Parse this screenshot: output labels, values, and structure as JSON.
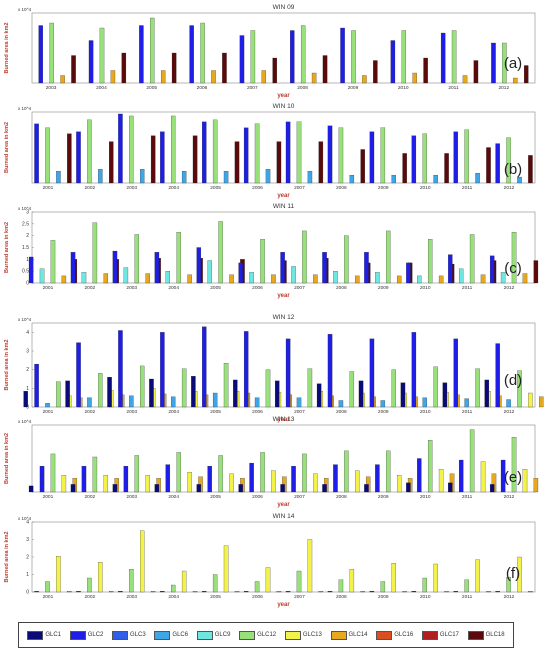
{
  "figure": {
    "ylabel": "Burned area in km2",
    "xlabel": "year",
    "panel_labels": [
      "(a)",
      "(b)",
      "(c)",
      "(d)",
      "(e)",
      "(f)"
    ]
  },
  "legend": {
    "entries": [
      {
        "name": "GLC1",
        "color": "#0a0a78"
      },
      {
        "name": "GLC2",
        "color": "#1e1ee6"
      },
      {
        "name": "GLC3",
        "color": "#2f5fe8"
      },
      {
        "name": "GLC6",
        "color": "#3ea6e6"
      },
      {
        "name": "GLC9",
        "color": "#6fe6e0"
      },
      {
        "name": "GLC12",
        "color": "#98e07a"
      },
      {
        "name": "GLC13",
        "color": "#f2f24a"
      },
      {
        "name": "GLC14",
        "color": "#e6a81e"
      },
      {
        "name": "GLC16",
        "color": "#d8501e"
      },
      {
        "name": "GLC17",
        "color": "#b01e1e"
      },
      {
        "name": "GLC18",
        "color": "#5a0a0a"
      }
    ]
  },
  "chart_data": [
    {
      "type": "bar",
      "title": "WIN 09",
      "exponent": "x 10^4",
      "ylim": [
        0,
        1.4
      ],
      "yticks": [],
      "categories": [
        "2003",
        "2004",
        "2005",
        "2006",
        "2007",
        "2008",
        "2009",
        "2010",
        "2011",
        "2012"
      ],
      "series": [
        {
          "name": "GLC2",
          "values": [
            1.15,
            0.85,
            1.15,
            1.15,
            0.95,
            1.05,
            1.1,
            0.85,
            1.0,
            0.8
          ]
        },
        {
          "name": "GLC12",
          "values": [
            1.2,
            1.1,
            1.3,
            1.2,
            1.05,
            1.15,
            1.05,
            1.05,
            1.05,
            0.8
          ]
        },
        {
          "name": "GLC14",
          "values": [
            0.15,
            0.25,
            0.25,
            0.25,
            0.25,
            0.2,
            0.15,
            0.2,
            0.15,
            0.1
          ]
        },
        {
          "name": "GLC18",
          "values": [
            0.55,
            0.6,
            0.6,
            0.6,
            0.5,
            0.55,
            0.45,
            0.5,
            0.45,
            0.35
          ]
        }
      ]
    },
    {
      "type": "bar",
      "title": "WIN 10",
      "exponent": "x 10^4",
      "ylim": [
        0,
        1.8
      ],
      "yticks": [],
      "categories": [
        "2001",
        "2002",
        "2003",
        "2004",
        "2005",
        "2006",
        "2007",
        "2008",
        "2009",
        "2010",
        "2011",
        "2012"
      ],
      "series": [
        {
          "name": "GLC2",
          "values": [
            1.5,
            1.3,
            1.75,
            1.3,
            1.55,
            1.4,
            1.55,
            1.45,
            1.3,
            1.2,
            1.3,
            1.0
          ]
        },
        {
          "name": "GLC12",
          "values": [
            1.4,
            1.6,
            1.7,
            1.7,
            1.6,
            1.5,
            1.55,
            1.4,
            1.4,
            1.25,
            1.35,
            1.15
          ]
        },
        {
          "name": "GLC6",
          "values": [
            0.3,
            0.35,
            0.35,
            0.3,
            0.3,
            0.35,
            0.3,
            0.2,
            0.2,
            0.2,
            0.25,
            0.15
          ]
        },
        {
          "name": "GLC18",
          "values": [
            1.25,
            1.05,
            1.2,
            1.2,
            1.05,
            1.05,
            1.05,
            0.85,
            0.75,
            0.75,
            0.9,
            0.7
          ]
        }
      ]
    },
    {
      "type": "bar",
      "title": "WIN 11",
      "exponent": "x 10^4",
      "ylim": [
        0,
        3
      ],
      "yticks": [
        "0",
        "0.5",
        "1",
        "1.5",
        "2",
        "2.5",
        "3"
      ],
      "categories": [
        "2001",
        "2002",
        "2003",
        "2004",
        "2005",
        "2006",
        "2007",
        "2008",
        "2009",
        "2010",
        "2011",
        "2012"
      ],
      "series": [
        {
          "name": "GLC2",
          "values": [
            1.1,
            1.3,
            1.35,
            1.3,
            1.5,
            0.85,
            1.3,
            1.3,
            1.3,
            0.85,
            1.2,
            1.15
          ]
        },
        {
          "name": "GLC9",
          "values": [
            0.6,
            0.45,
            0.65,
            0.5,
            0.95,
            0.45,
            0.7,
            0.5,
            0.45,
            0.3,
            0.6,
            0.45
          ]
        },
        {
          "name": "GLC12",
          "values": [
            1.8,
            2.55,
            2.05,
            2.15,
            2.6,
            1.85,
            2.2,
            2.0,
            2.2,
            1.85,
            2.05,
            2.15
          ]
        },
        {
          "name": "GLC14",
          "values": [
            0.3,
            0.4,
            0.4,
            0.35,
            0.35,
            0.35,
            0.35,
            0.3,
            0.3,
            0.3,
            0.35,
            0.4
          ]
        },
        {
          "name": "GLC18",
          "values": [
            1.0,
            1.0,
            1.05,
            1.05,
            1.0,
            0.95,
            1.05,
            0.85,
            0.85,
            0.8,
            0.95,
            0.95
          ]
        }
      ]
    },
    {
      "type": "bar",
      "title": "WIN 12",
      "exponent": "x 10^4",
      "ylim": [
        0,
        4.5
      ],
      "yticks": [
        "0",
        "1",
        "2",
        "3",
        "4"
      ],
      "categories": [
        "2001",
        "2002",
        "2003",
        "2004",
        "2005",
        "2006",
        "2007",
        "2008",
        "2009",
        "2010",
        "2011",
        "2012"
      ],
      "series": [
        {
          "name": "GLC1",
          "values": [
            0.85,
            1.4,
            1.6,
            1.5,
            1.65,
            1.45,
            1.4,
            1.25,
            1.4,
            1.3,
            1.3,
            1.45
          ]
        },
        {
          "name": "GLC2",
          "values": [
            2.3,
            3.45,
            4.1,
            4.0,
            4.3,
            4.05,
            3.65,
            3.9,
            3.65,
            4.0,
            3.65,
            3.4
          ]
        },
        {
          "name": "GLC6",
          "values": [
            0.2,
            0.5,
            0.6,
            0.55,
            0.75,
            0.5,
            0.5,
            0.35,
            0.35,
            0.5,
            0.45,
            0.4
          ]
        },
        {
          "name": "GLC12",
          "values": [
            1.35,
            1.8,
            2.2,
            2.05,
            2.35,
            2.0,
            2.05,
            1.9,
            2.0,
            2.15,
            2.05,
            1.95
          ]
        },
        {
          "name": "GLC13",
          "values": [
            0.6,
            0.9,
            1.0,
            0.85,
            0.85,
            0.8,
            0.85,
            0.75,
            0.75,
            0.8,
            0.85,
            0.75
          ]
        },
        {
          "name": "GLC14",
          "values": [
            0.5,
            0.65,
            0.7,
            0.65,
            0.75,
            0.65,
            0.6,
            0.55,
            0.55,
            0.65,
            0.6,
            0.55
          ]
        }
      ]
    },
    {
      "type": "bar",
      "title": "WIN 13",
      "exponent": "x 10^4",
      "ylim": [
        0,
        2.2
      ],
      "yticks": [],
      "categories": [
        "2001",
        "2002",
        "2003",
        "2004",
        "2005",
        "2006",
        "2007",
        "2008",
        "2009",
        "2010",
        "2011",
        "2012"
      ],
      "series": [
        {
          "name": "GLC1",
          "values": [
            0.2,
            0.25,
            0.25,
            0.25,
            0.25,
            0.25,
            0.25,
            0.25,
            0.25,
            0.3,
            0.3,
            0.25
          ]
        },
        {
          "name": "GLC2",
          "values": [
            0.85,
            0.85,
            0.85,
            0.9,
            0.85,
            0.95,
            0.85,
            0.9,
            0.9,
            1.1,
            1.05,
            1.05
          ]
        },
        {
          "name": "GLC12",
          "values": [
            1.25,
            1.15,
            1.2,
            1.3,
            1.2,
            1.3,
            1.25,
            1.35,
            1.35,
            1.7,
            2.05,
            1.8
          ]
        },
        {
          "name": "GLC13",
          "values": [
            0.55,
            0.55,
            0.55,
            0.65,
            0.6,
            0.7,
            0.6,
            0.7,
            0.55,
            0.75,
            1.0,
            0.75
          ]
        },
        {
          "name": "GLC14",
          "values": [
            0.45,
            0.45,
            0.45,
            0.5,
            0.45,
            0.5,
            0.45,
            0.5,
            0.45,
            0.6,
            0.6,
            0.45
          ]
        }
      ]
    },
    {
      "type": "bar",
      "title": "WIN 14",
      "exponent": "x 10^4",
      "ylim": [
        0,
        4
      ],
      "yticks": [
        "0",
        "1",
        "2",
        "3",
        "4"
      ],
      "categories": [
        "2001",
        "2002",
        "2003",
        "2004",
        "2005",
        "2006",
        "2007",
        "2008",
        "2009",
        "2010",
        "2011",
        "2012"
      ],
      "series": [
        {
          "name": "GLC2",
          "values": [
            0.05,
            0.05,
            0.05,
            0.05,
            0.05,
            0.05,
            0.05,
            0.05,
            0.05,
            0.05,
            0.05,
            0.05
          ]
        },
        {
          "name": "GLC12",
          "values": [
            0.6,
            0.8,
            1.3,
            0.4,
            1.0,
            0.6,
            1.2,
            0.7,
            0.6,
            0.8,
            0.7,
            0.85
          ]
        },
        {
          "name": "GLC13",
          "values": [
            2.05,
            1.7,
            3.5,
            1.2,
            2.65,
            1.4,
            3.0,
            1.3,
            1.65,
            1.6,
            1.85,
            2.0
          ]
        },
        {
          "name": "GLC14",
          "values": [
            0.05,
            0.05,
            0.05,
            0.05,
            0.05,
            0.05,
            0.05,
            0.05,
            0.05,
            0.05,
            0.05,
            0.05
          ]
        }
      ]
    }
  ]
}
